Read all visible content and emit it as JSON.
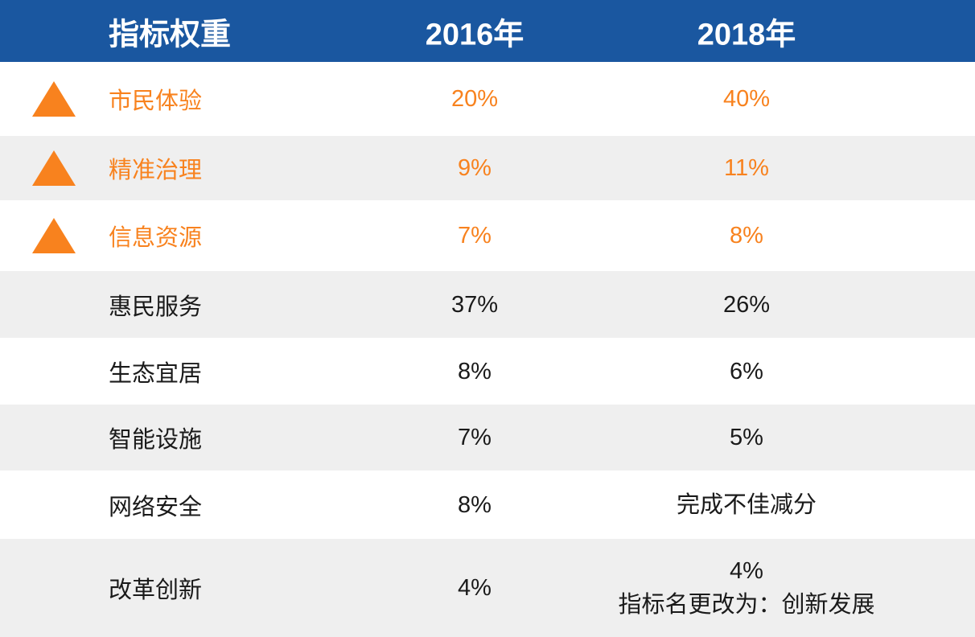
{
  "table": {
    "header": {
      "col_indicator": "指标权重",
      "col_2016": "2016年",
      "col_2018": "2018年"
    },
    "rows": [
      {
        "label": "市民体验",
        "v2016": "20%",
        "v2018": "40%",
        "trend": "up"
      },
      {
        "label": "精准治理",
        "v2016": "9%",
        "v2018": "11%",
        "trend": "up"
      },
      {
        "label": "信息资源",
        "v2016": "7%",
        "v2018": "8%",
        "trend": "up"
      },
      {
        "label": "惠民服务",
        "v2016": "37%",
        "v2018": "26%"
      },
      {
        "label": "生态宜居",
        "v2016": "8%",
        "v2018": "6%"
      },
      {
        "label": "智能设施",
        "v2016": "7%",
        "v2018": "5%"
      },
      {
        "label": "网络安全",
        "v2016": "8%",
        "v2018": "完成不佳减分"
      },
      {
        "label": "改革创新",
        "v2016": "4%",
        "v2018": "4%",
        "v2018_note": "指标名更改为：创新发展"
      }
    ]
  },
  "icons": {
    "trend_up": "triangle-up-icon"
  },
  "colors": {
    "header_bg": "#1A57A0",
    "header_text": "#FFFFFF",
    "highlight_orange": "#F8821E",
    "row_stripe": "#EFEFEF",
    "row_white": "#FFFFFF",
    "body_text": "#1A1A1A"
  },
  "chart_data": {
    "type": "table",
    "title": "指标权重",
    "columns": [
      "指标权重",
      "2016年",
      "2018年"
    ],
    "rows": [
      [
        "市民体验",
        "20%",
        "40%"
      ],
      [
        "精准治理",
        "9%",
        "11%"
      ],
      [
        "信息资源",
        "7%",
        "8%"
      ],
      [
        "惠民服务",
        "37%",
        "26%"
      ],
      [
        "生态宜居",
        "8%",
        "6%"
      ],
      [
        "智能设施",
        "7%",
        "5%"
      ],
      [
        "网络安全",
        "8%",
        "完成不佳减分"
      ],
      [
        "改革创新",
        "4%",
        "4% 指标名更改为：创新发展"
      ]
    ],
    "series": [
      {
        "name": "2016年",
        "values": [
          20,
          9,
          7,
          37,
          8,
          7,
          8,
          4
        ]
      },
      {
        "name": "2018年",
        "values": [
          40,
          11,
          8,
          26,
          6,
          5,
          null,
          4
        ]
      }
    ],
    "annotations": [
      "网络安全 2018年: 完成不佳减分",
      "改革创新 2018年: 指标名更改为：创新发展"
    ],
    "highlighted_rows": [
      "市民体验",
      "精准治理",
      "信息资源"
    ],
    "highlight_marker": "orange-triangle-up",
    "legend_position": "none",
    "grid": false
  }
}
